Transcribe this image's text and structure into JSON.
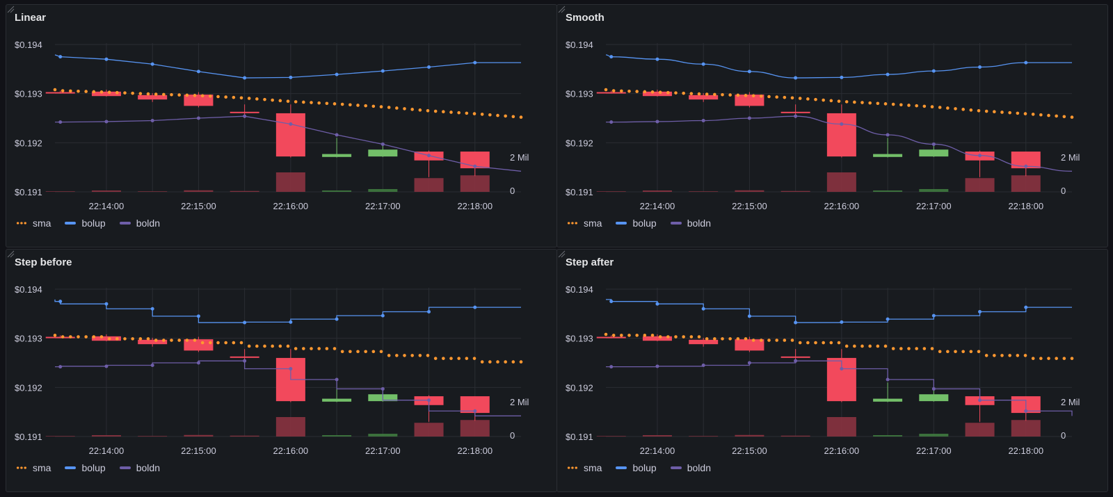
{
  "panels": [
    {
      "title": "Linear",
      "interp": "linear"
    },
    {
      "title": "Smooth",
      "interp": "smooth"
    },
    {
      "title": "Step before",
      "interp": "stepBefore"
    },
    {
      "title": "Step after",
      "interp": "stepAfter"
    }
  ],
  "legend": [
    {
      "label": "sma",
      "color": "#ff9830",
      "style": "dots"
    },
    {
      "label": "bolup",
      "color": "#5794f2",
      "style": "line"
    },
    {
      "label": "boldn",
      "color": "#6e5ea8",
      "style": "line"
    }
  ],
  "colors": {
    "up": "#73bf69",
    "down": "#f2495c",
    "grid": "#2a2d33"
  },
  "chart_data": {
    "type": "candlestick",
    "x_ticks": [
      "22:14:00",
      "22:15:00",
      "22:16:00",
      "22:17:00",
      "22:18:00"
    ],
    "y_ticks": [
      "$0.194",
      "$0.193",
      "$0.192",
      "$0.191"
    ],
    "y_ticks_values": [
      0.194,
      0.193,
      0.192,
      0.191
    ],
    "y_range": [
      0.191,
      0.194
    ],
    "volume_ticks": [
      "2 Mil",
      "0"
    ],
    "volume_range": [
      0,
      2000000
    ],
    "x_range_seconds": [
      773,
      1127
    ],
    "candles": [
      {
        "t": 780,
        "open": 0.19303,
        "close": 0.19301,
        "high": 0.19306,
        "low": 0.193,
        "volume": 30000
      },
      {
        "t": 840,
        "open": 0.19304,
        "close": 0.19295,
        "high": 0.19308,
        "low": 0.19294,
        "volume": 80000
      },
      {
        "t": 900,
        "open": 0.19297,
        "close": 0.19288,
        "high": 0.19301,
        "low": 0.19283,
        "volume": 30000
      },
      {
        "t": 960,
        "open": 0.19298,
        "close": 0.19275,
        "high": 0.19303,
        "low": 0.19272,
        "volume": 90000
      },
      {
        "t": 1020,
        "open": 0.19263,
        "close": 0.19261,
        "high": 0.19278,
        "low": 0.1925,
        "volume": 50000
      },
      {
        "t": 1080,
        "open": 0.1926,
        "close": 0.19172,
        "high": 0.19278,
        "low": 0.1917,
        "volume": 1120000
      },
      {
        "t": 1140,
        "open": 0.19171,
        "close": 0.19177,
        "high": 0.1921,
        "low": 0.1917,
        "volume": 80000
      },
      {
        "t": 1200,
        "open": 0.19172,
        "close": 0.19186,
        "high": 0.19198,
        "low": 0.19171,
        "volume": 160000
      },
      {
        "t": 1260,
        "open": 0.19182,
        "close": 0.19164,
        "high": 0.19184,
        "low": 0.1913,
        "volume": 790000
      },
      {
        "t": 1320,
        "open": 0.19182,
        "close": 0.19148,
        "high": 0.19182,
        "low": 0.19132,
        "volume": 950000
      }
    ],
    "series": [
      {
        "name": "sma",
        "color": "#ff9830",
        "x": [
          773,
          780,
          840,
          900,
          960,
          1020,
          1080,
          1140,
          1200,
          1260,
          1320,
          1380
        ],
        "y": [
          0.19308,
          0.19306,
          0.19303,
          0.19299,
          0.19296,
          0.19291,
          0.19284,
          0.19279,
          0.19273,
          0.19265,
          0.19259,
          0.19252
        ]
      },
      {
        "name": "bolup",
        "color": "#5794f2",
        "x": [
          773,
          780,
          840,
          900,
          960,
          1020,
          1080,
          1140,
          1200,
          1260,
          1320,
          1380
        ],
        "y": [
          0.19379,
          0.19375,
          0.1937,
          0.1936,
          0.19345,
          0.19332,
          0.19333,
          0.19339,
          0.19346,
          0.19354,
          0.19363,
          0.19363
        ]
      },
      {
        "name": "boldn",
        "color": "#6e5ea8",
        "x": [
          773,
          780,
          840,
          900,
          960,
          1020,
          1080,
          1140,
          1200,
          1260,
          1320,
          1380
        ],
        "y": [
          0.19242,
          0.19242,
          0.19243,
          0.19245,
          0.1925,
          0.19254,
          0.19238,
          0.19216,
          0.19197,
          0.19174,
          0.19152,
          0.19142
        ]
      }
    ]
  }
}
